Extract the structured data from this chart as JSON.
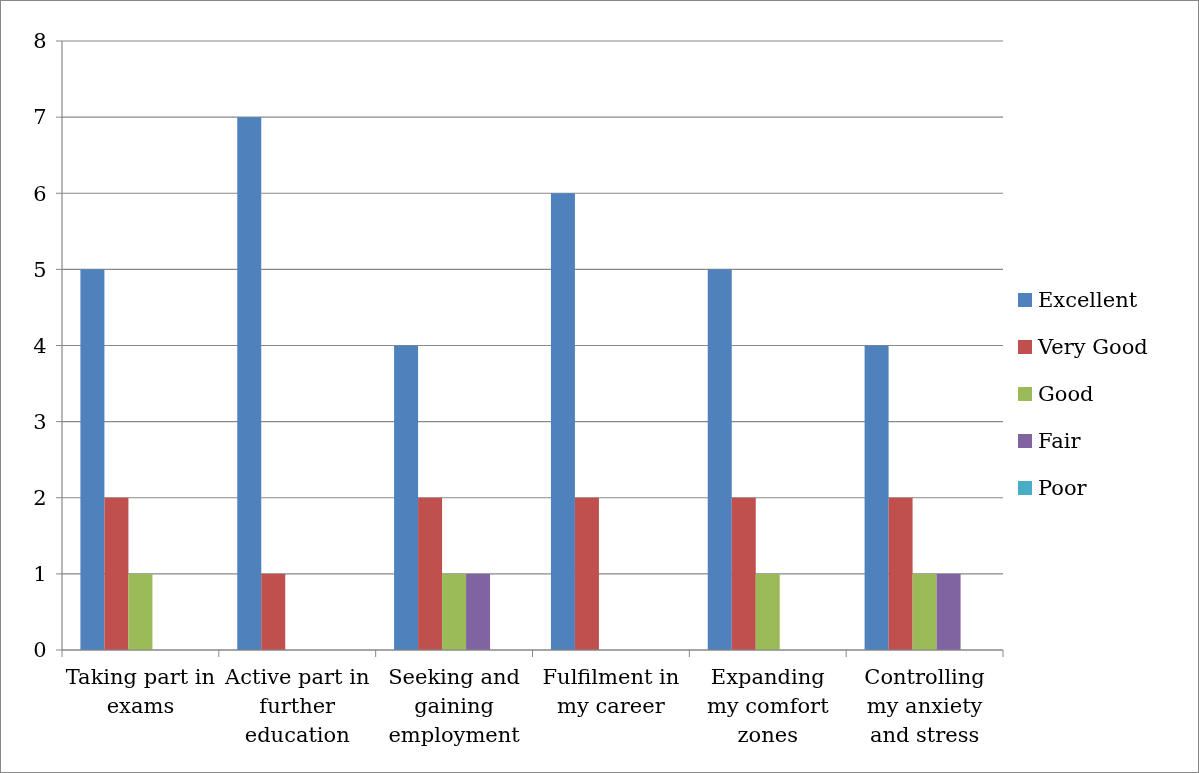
{
  "chart_data": {
    "type": "bar",
    "categories": [
      "Taking part in exams",
      "Active part in further education",
      "Seeking and gaining employment",
      "Fulfilment in my career",
      "Expanding my comfort zones",
      "Controlling my anxiety and stress"
    ],
    "series": [
      {
        "name": "Excellent",
        "color": "#4f81bd",
        "values": [
          5,
          7,
          4,
          6,
          5,
          4
        ]
      },
      {
        "name": "Very Good",
        "color": "#c0504d",
        "values": [
          2,
          1,
          2,
          2,
          2,
          2
        ]
      },
      {
        "name": "Good",
        "color": "#9bbb59",
        "values": [
          1,
          0,
          1,
          0,
          1,
          1
        ]
      },
      {
        "name": "Fair",
        "color": "#8064a2",
        "values": [
          0,
          0,
          1,
          0,
          0,
          1
        ]
      },
      {
        "name": "Poor",
        "color": "#4bacc6",
        "values": [
          0,
          0,
          0,
          0,
          0,
          0
        ]
      }
    ],
    "ylim": [
      0,
      8
    ],
    "yticks": [
      0,
      1,
      2,
      3,
      4,
      5,
      6,
      7,
      8
    ],
    "grid": "y",
    "legend": "right"
  }
}
